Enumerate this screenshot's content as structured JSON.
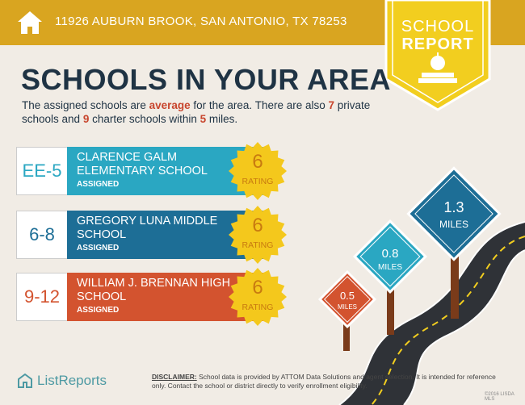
{
  "header": {
    "address": "11926 AUBURN BROOK, SAN ANTONIO, TX 78253",
    "badge_line1": "SCHOOL",
    "badge_line2": "REPORT",
    "bar_color": "#d9a520"
  },
  "title": "SCHOOLS IN YOUR AREA",
  "intro": {
    "p1": "The assigned schools are ",
    "quality": "average",
    "p2": " for the area. There are also ",
    "private_count": "7",
    "p3": " private schools and ",
    "charter_count": "9",
    "p4": " charter schools within ",
    "miles": "5",
    "p5": " miles."
  },
  "schools": [
    {
      "grades": "EE-5",
      "name": "CLARENCE GALM ELEMENTARY SCHOOL",
      "status": "ASSIGNED",
      "rating": "6",
      "rating_label": "RATING",
      "color": "#2aa7c2"
    },
    {
      "grades": "6-8",
      "name": "GREGORY LUNA MIDDLE SCHOOL",
      "status": "ASSIGNED",
      "rating": "6",
      "rating_label": "RATING",
      "color": "#1d6e96"
    },
    {
      "grades": "9-12",
      "name": "WILLIAM J. BRENNAN HIGH SCHOOL",
      "status": "ASSIGNED",
      "rating": "6",
      "rating_label": "RATING",
      "color": "#d3532f"
    }
  ],
  "signs": [
    {
      "value": "0.5",
      "unit": "MILES",
      "color": "#d3532f"
    },
    {
      "value": "0.8",
      "unit": "MILES",
      "color": "#2aa7c2"
    },
    {
      "value": "1.3",
      "unit": "MILES",
      "color": "#1d6e96"
    }
  ],
  "footer": {
    "logo_text": "ListReports",
    "disclaimer_label": "DISCLAIMER:",
    "disclaimer_text": " School data is provided by ATTOM Data Solutions and agent selection. It is intended for reference only. Contact the school or district directly to verify enrollment eligibility.",
    "copyright": "©2016 LISDA MLS"
  }
}
